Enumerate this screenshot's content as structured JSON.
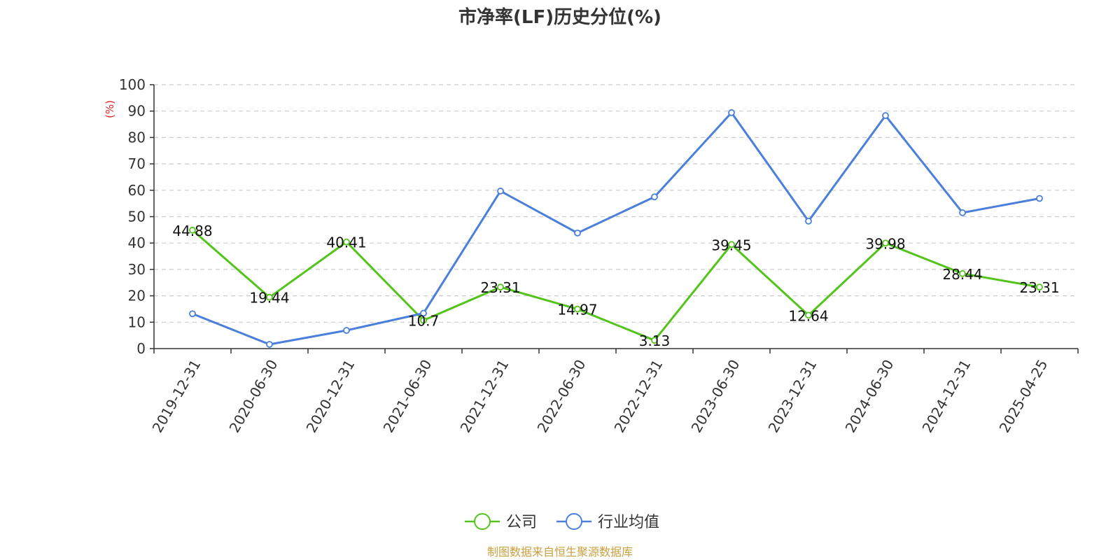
{
  "chart_data": {
    "type": "line",
    "title": "市净率(LF)历史分位(%)",
    "ylabel": "(%)",
    "xlabel": "",
    "ylim": [
      0,
      100
    ],
    "yticks": [
      0,
      10,
      20,
      30,
      40,
      50,
      60,
      70,
      80,
      90,
      100
    ],
    "grid": true,
    "legend_position": "bottom",
    "categories": [
      "2019-12-31",
      "2020-06-30",
      "2020-12-31",
      "2021-06-30",
      "2021-12-31",
      "2022-06-30",
      "2022-12-31",
      "2023-06-30",
      "2023-12-31",
      "2024-06-30",
      "2024-12-31",
      "2025-04-25"
    ],
    "series": [
      {
        "name": "公司",
        "color": "#52c41a",
        "show_labels": true,
        "values": [
          44.88,
          19.44,
          40.41,
          10.7,
          23.31,
          14.97,
          3.13,
          39.45,
          12.64,
          39.98,
          28.44,
          23.31
        ]
      },
      {
        "name": "行业均值",
        "color": "#4a7fdc",
        "show_labels": false,
        "values": [
          13.2,
          1.6,
          6.9,
          13.4,
          59.7,
          43.8,
          57.5,
          89.4,
          48.3,
          88.3,
          51.5,
          56.9
        ]
      }
    ],
    "source": "制图数据来自恒生聚源数据库"
  },
  "colors": {
    "ylabel": "#e02020",
    "source": "#c8a040",
    "grid": "#cccccc",
    "axis": "#333333"
  }
}
